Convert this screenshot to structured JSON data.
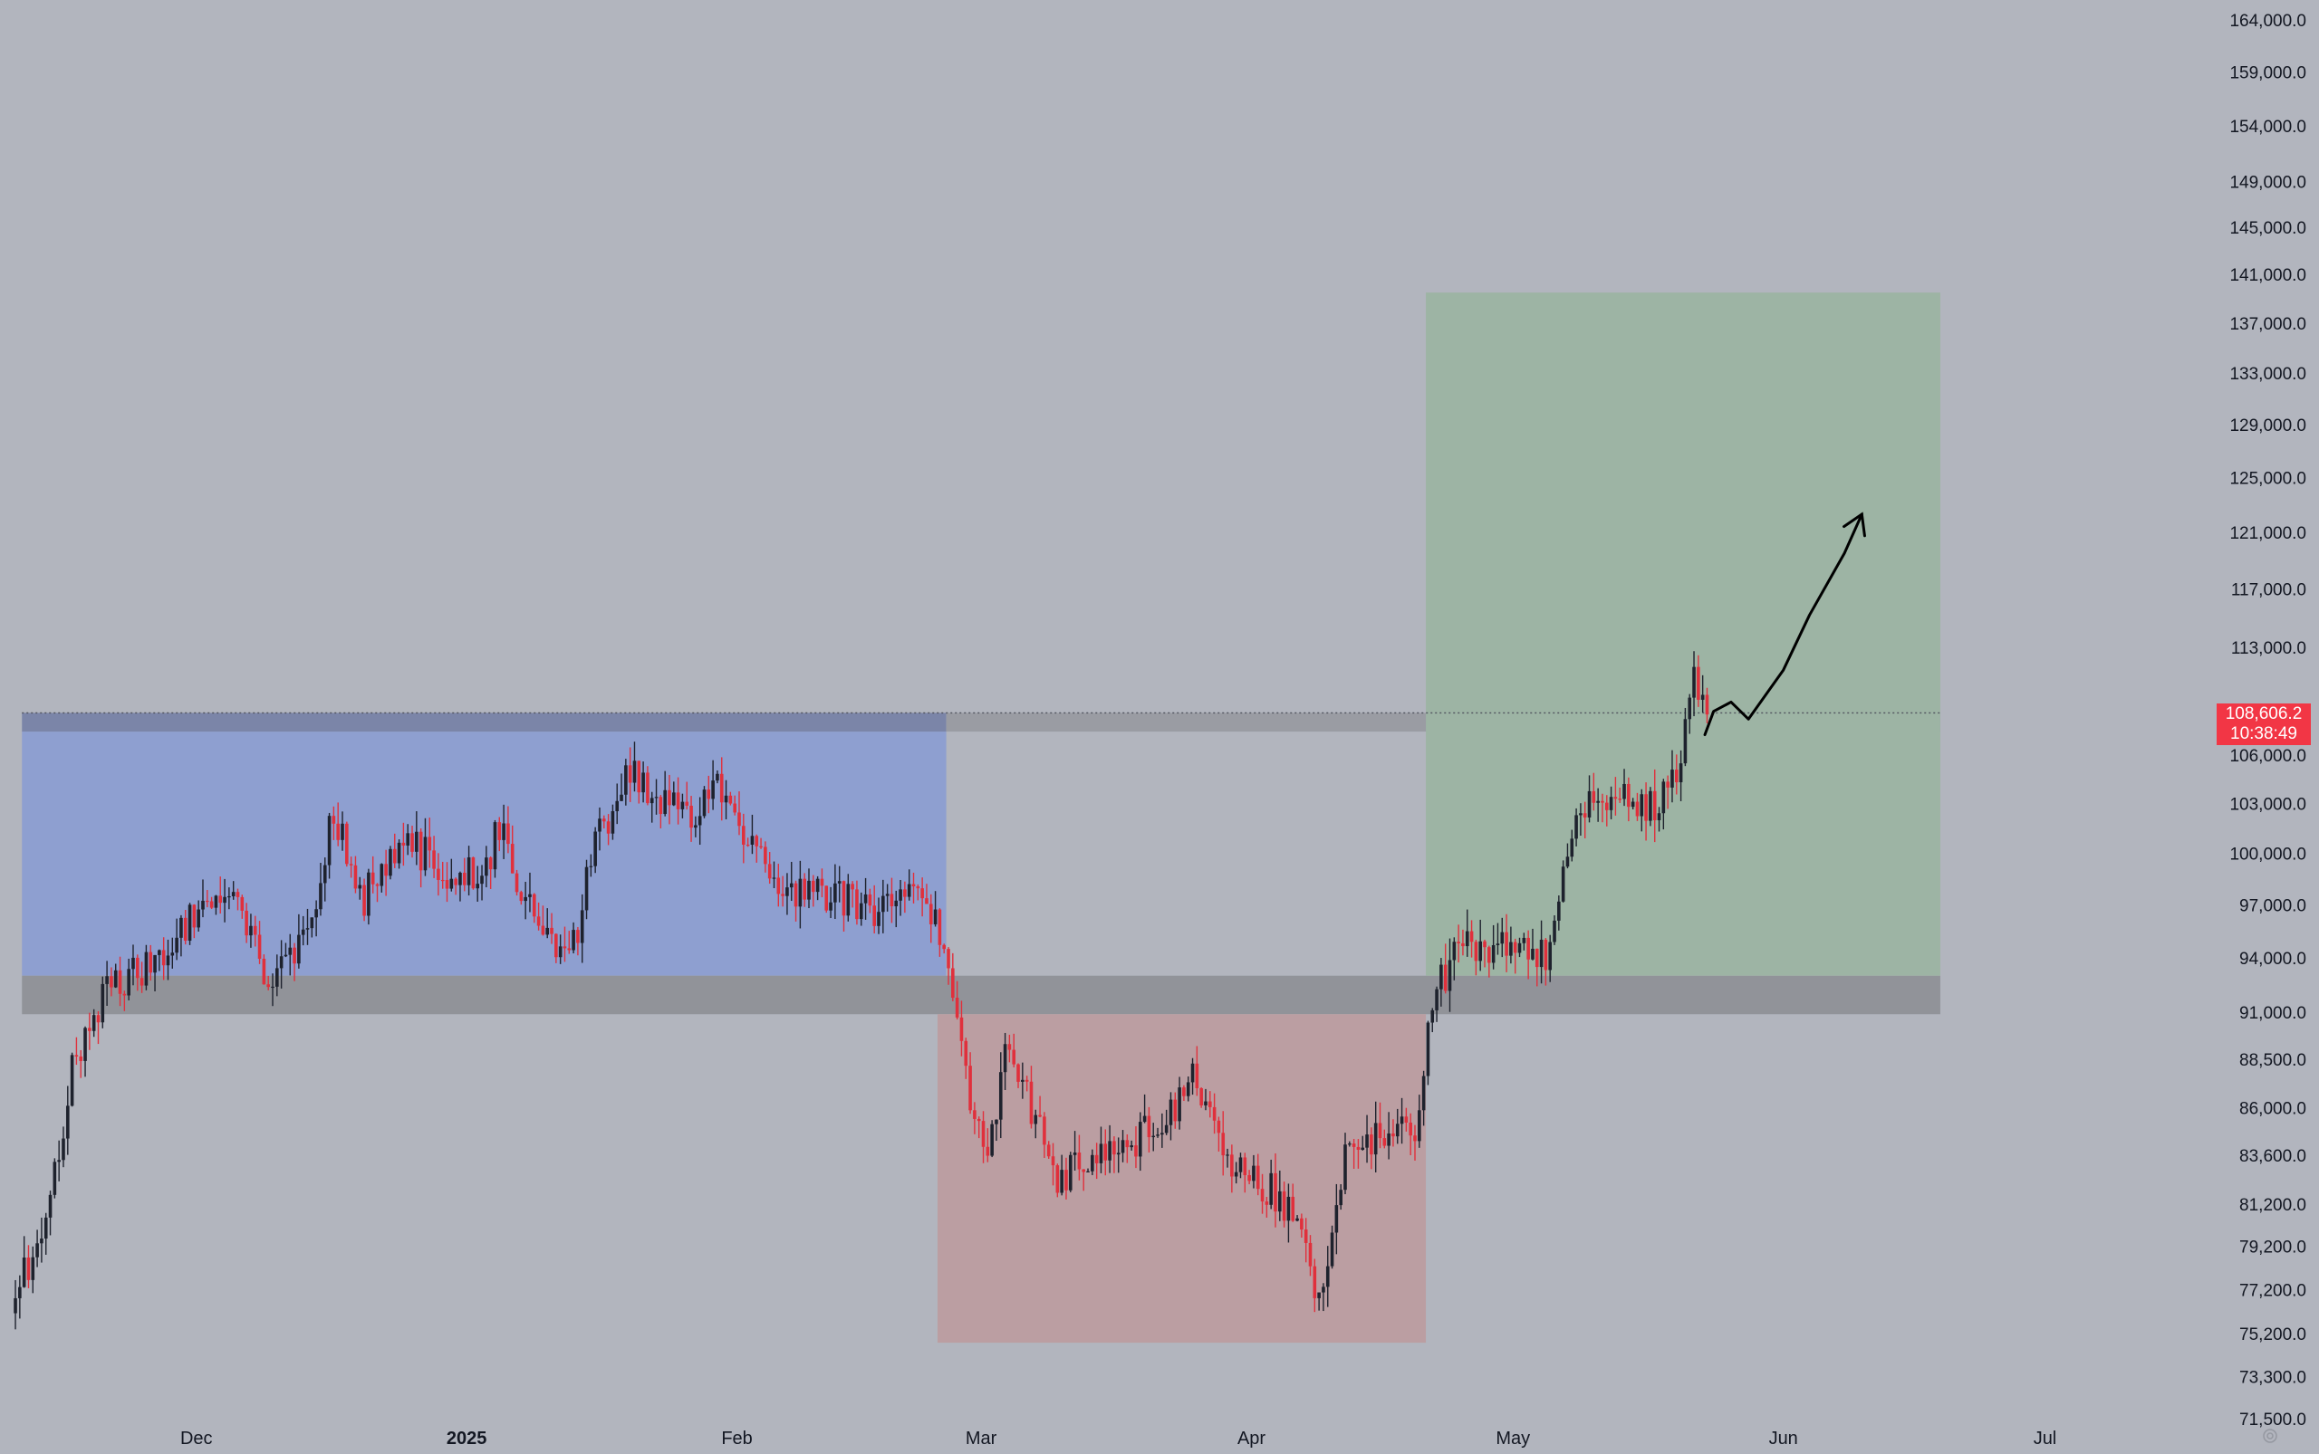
{
  "chart_data": {
    "type": "candlestick",
    "title": "",
    "ylim": [
      71500,
      164000
    ],
    "y_ticks": [
      "164,000.0",
      "159,000.0",
      "154,000.0",
      "149,000.0",
      "145,000.0",
      "141,000.0",
      "137,000.0",
      "133,000.0",
      "129,000.0",
      "125,000.0",
      "121,000.0",
      "117,000.0",
      "113,000.0",
      "106,000.0",
      "103,000.0",
      "100,000.0",
      "97,000.0",
      "94,000.0",
      "91,000.0",
      "88,500.0",
      "86,000.0",
      "83,600.0",
      "81,200.0",
      "79,200.0",
      "77,200.0",
      "75,200.0",
      "73,300.0",
      "71,500.0"
    ],
    "x_labels": [
      {
        "date": "2024-12-01",
        "label": "Dec",
        "bold": false
      },
      {
        "date": "2025-01-01",
        "label": "2025",
        "bold": true
      },
      {
        "date": "2025-02-01",
        "label": "Feb",
        "bold": false
      },
      {
        "date": "2025-03-01",
        "label": "Mar",
        "bold": false
      },
      {
        "date": "2025-04-01",
        "label": "Apr",
        "bold": false
      },
      {
        "date": "2025-05-01",
        "label": "May",
        "bold": false
      },
      {
        "date": "2025-06-01",
        "label": "Jun",
        "bold": false
      },
      {
        "date": "2025-07-01",
        "label": "Jul",
        "bold": false
      }
    ],
    "x_range": [
      "2024-11-09",
      "2025-07-21"
    ],
    "current_price": {
      "value": 108606.2,
      "label": "108,606.2",
      "countdown": "10:38:49",
      "color": "#f23645"
    },
    "key_points": [
      {
        "date": "2024-11-10",
        "price": 76500
      },
      {
        "date": "2024-11-14",
        "price": 80000
      },
      {
        "date": "2024-11-17",
        "price": 88000
      },
      {
        "date": "2024-11-21",
        "price": 92500
      },
      {
        "date": "2024-11-27",
        "price": 94000
      },
      {
        "date": "2024-12-04",
        "price": 98000
      },
      {
        "date": "2024-12-07",
        "price": 95500
      },
      {
        "date": "2024-12-10",
        "price": 92000
      },
      {
        "date": "2024-12-15",
        "price": 97500
      },
      {
        "date": "2024-12-17",
        "price": 103000
      },
      {
        "date": "2024-12-20",
        "price": 97000
      },
      {
        "date": "2024-12-25",
        "price": 101000
      },
      {
        "date": "2024-12-30",
        "price": 99000
      },
      {
        "date": "2025-01-03",
        "price": 98500
      },
      {
        "date": "2025-01-05",
        "price": 101500
      },
      {
        "date": "2025-01-09",
        "price": 96000
      },
      {
        "date": "2025-01-13",
        "price": 93500
      },
      {
        "date": "2025-01-16",
        "price": 100500
      },
      {
        "date": "2025-01-20",
        "price": 105500
      },
      {
        "date": "2025-01-23",
        "price": 103000
      },
      {
        "date": "2025-01-27",
        "price": 102500
      },
      {
        "date": "2025-01-31",
        "price": 104000
      },
      {
        "date": "2025-02-03",
        "price": 100500
      },
      {
        "date": "2025-02-06",
        "price": 98000
      },
      {
        "date": "2025-02-12",
        "price": 97500
      },
      {
        "date": "2025-02-18",
        "price": 96500
      },
      {
        "date": "2025-02-22",
        "price": 98000
      },
      {
        "date": "2025-02-25",
        "price": 95000
      },
      {
        "date": "2025-02-28",
        "price": 86000
      },
      {
        "date": "2025-03-02",
        "price": 83000
      },
      {
        "date": "2025-03-04",
        "price": 89000
      },
      {
        "date": "2025-03-07",
        "price": 86000
      },
      {
        "date": "2025-03-10",
        "price": 82000
      },
      {
        "date": "2025-03-14",
        "price": 84000
      },
      {
        "date": "2025-03-18",
        "price": 84000
      },
      {
        "date": "2025-03-22",
        "price": 85500
      },
      {
        "date": "2025-03-26",
        "price": 87500
      },
      {
        "date": "2025-03-29",
        "price": 83500
      },
      {
        "date": "2025-04-02",
        "price": 82500
      },
      {
        "date": "2025-04-06",
        "price": 80500
      },
      {
        "date": "2025-04-09",
        "price": 77000
      },
      {
        "date": "2025-04-12",
        "price": 83500
      },
      {
        "date": "2025-04-16",
        "price": 84500
      },
      {
        "date": "2025-04-20",
        "price": 85000
      },
      {
        "date": "2025-04-22",
        "price": 91500
      },
      {
        "date": "2025-04-25",
        "price": 94500
      },
      {
        "date": "2025-05-01",
        "price": 95000
      },
      {
        "date": "2025-05-05",
        "price": 94000
      },
      {
        "date": "2025-05-08",
        "price": 101500
      },
      {
        "date": "2025-05-10",
        "price": 103500
      },
      {
        "date": "2025-05-14",
        "price": 103500
      },
      {
        "date": "2025-05-18",
        "price": 103000
      },
      {
        "date": "2025-05-20",
        "price": 105500
      },
      {
        "date": "2025-05-22",
        "price": 110500
      },
      {
        "date": "2025-05-23",
        "price": 108600
      }
    ],
    "zones": [
      {
        "kind": "range",
        "color": "#8e9fd0",
        "x": [
          "2024-11-11",
          "2025-02-25"
        ],
        "y": [
          93000,
          107500
        ]
      },
      {
        "kind": "resistance",
        "color": "#7b85a8",
        "x": [
          "2024-11-11",
          "2025-02-25"
        ],
        "y": [
          107500,
          108700
        ]
      },
      {
        "kind": "resistance",
        "color": "#9a9ca3",
        "x": [
          "2025-02-25",
          "2025-06-19"
        ],
        "y": [
          107500,
          108700
        ]
      },
      {
        "kind": "support",
        "color": "#919399",
        "x": [
          "2024-11-11",
          "2025-06-19"
        ],
        "y": [
          90900,
          93000
        ]
      },
      {
        "kind": "drawdown",
        "color": "#bb9ea2",
        "x": [
          "2025-02-24",
          "2025-04-21"
        ],
        "y": [
          74800,
          90900
        ]
      },
      {
        "kind": "target",
        "color": "#9db4a4",
        "x": [
          "2025-04-21",
          "2025-06-19"
        ],
        "y": [
          93000,
          139500
        ]
      }
    ],
    "dotted_line": {
      "price": 108700,
      "x": [
        "2024-11-11",
        "2025-06-19"
      ]
    },
    "projection": [
      {
        "date": "2025-05-23",
        "price": 107300
      },
      {
        "date": "2025-05-24",
        "price": 108800
      },
      {
        "date": "2025-05-26",
        "price": 109400
      },
      {
        "date": "2025-05-28",
        "price": 108300
      },
      {
        "date": "2025-06-01",
        "price": 111500
      },
      {
        "date": "2025-06-04",
        "price": 115200
      },
      {
        "date": "2025-06-08",
        "price": 119500
      },
      {
        "date": "2025-06-10",
        "price": 122300
      }
    ],
    "colors": {
      "background": "#b2b5be",
      "up": "#1e222d",
      "down": "#e0303c",
      "text": "#131722"
    }
  }
}
